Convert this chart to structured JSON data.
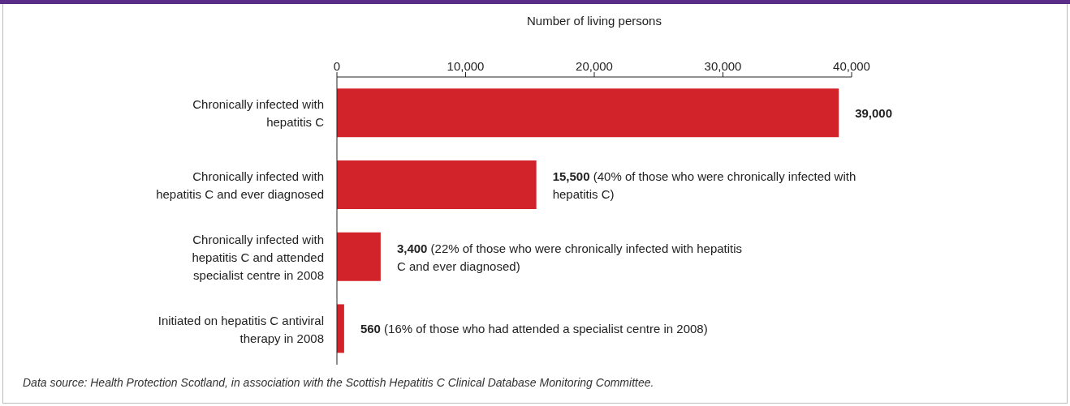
{
  "chart_data": {
    "type": "bar",
    "orientation": "horizontal",
    "xlabel": "Number of living persons",
    "categories": [
      "Chronically infected with hepatitis C",
      "Chronically infected with hepatitis C and ever diagnosed",
      "Chronically infected with hepatitis C and attended specialist centre in 2008",
      "Initiated on hepatitis C antiviral therapy in 2008"
    ],
    "values": [
      39000,
      15500,
      3400,
      560
    ],
    "color": "#d2232a",
    "value_labels": [
      "39,000",
      "15,500 (40% of those who were chronically infected with hepatitis C)",
      "3,400 (22% of those who were chronically infected with hepatitis C and ever diagnosed)",
      "560 (16% of those who had attended a specialist centre in 2008)"
    ],
    "xlim": [
      0,
      40000
    ],
    "xticks": [
      0,
      {
        "value": 10000,
        "label": "10,000"
      },
      {
        "value": 20000,
        "label": "20,000"
      },
      {
        "value": 30000,
        "label": "30,000"
      },
      {
        "value": 40000,
        "label": "40,000"
      }
    ],
    "grid": false,
    "legend": false,
    "annotations": [
      "Data source:  Health Protection Scotland, in association with the Scottish Hepatitis C Clinical Database Monitoring Committee."
    ]
  }
}
